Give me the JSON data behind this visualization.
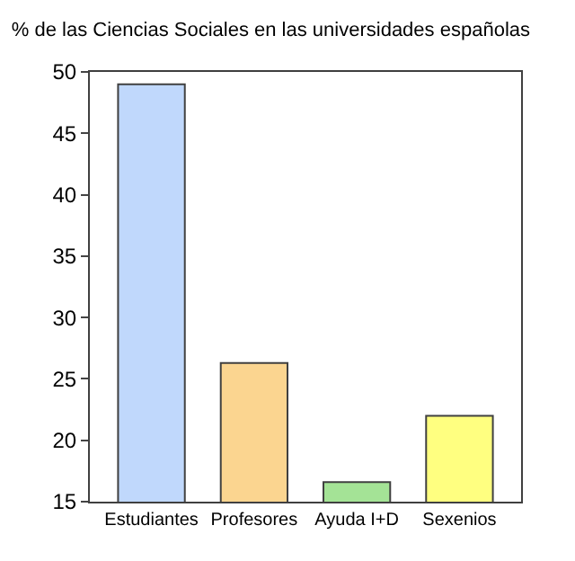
{
  "chart_data": {
    "type": "bar",
    "title": "% de las Ciencias Sociales en las universidades españolas",
    "categories": [
      "Estudiantes",
      "Profesores",
      "Ayuda I+D",
      "Sexenios"
    ],
    "values": [
      49.0,
      26.3,
      16.6,
      22.0
    ],
    "colors": [
      "#c0d8fc",
      "#fbd590",
      "#a4e396",
      "#ffff80"
    ],
    "ylim": [
      15,
      50
    ],
    "yticks": [
      15,
      20,
      25,
      30,
      35,
      40,
      45,
      50
    ]
  }
}
